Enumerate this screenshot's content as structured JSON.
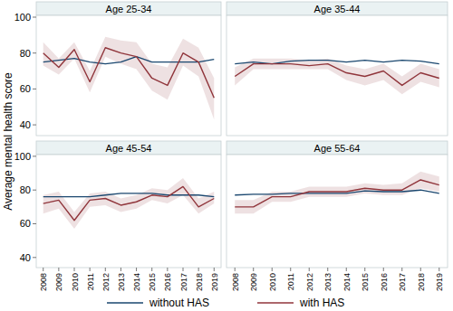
{
  "chart_data": {
    "type": "line",
    "y_label": "Average mental health score",
    "x": [
      2008,
      2009,
      2010,
      2011,
      2012,
      2013,
      2014,
      2015,
      2016,
      2017,
      2018,
      2019
    ],
    "xlim": [
      2007.55,
      2019.45
    ],
    "xticks": [
      2008,
      2009,
      2010,
      2011,
      2012,
      2013,
      2014,
      2015,
      2016,
      2017,
      2018,
      2019
    ],
    "ylim": [
      34,
      101
    ],
    "yticks": [
      40,
      60,
      80,
      100
    ],
    "grid": false,
    "legend": "bottom",
    "series": [
      {
        "name": "without HAS",
        "color": "#1a476f"
      },
      {
        "name": "with HAS",
        "color": "#90353b"
      }
    ],
    "panels": [
      {
        "title": "Age 25-34",
        "series": [
          {
            "values": [
              75,
              76,
              77,
              75,
              74,
              75,
              78,
              75,
              75,
              75,
              75,
              76.5
            ]
          },
          {
            "values": [
              80,
              72,
              82,
              64,
              83,
              80,
              78,
              66,
              62,
              80,
              75,
              55
            ],
            "lower": [
              73,
              68,
              77,
              58,
              78,
              74,
              71,
              59,
              54,
              73,
              67,
              43
            ],
            "upper": [
              86,
              77,
              86,
              70,
              89,
              87,
              86,
              74,
              72,
              88,
              83,
              66
            ]
          }
        ]
      },
      {
        "title": "Age 35-44",
        "series": [
          {
            "values": [
              74,
              75,
              74,
              75.5,
              76,
              76,
              75,
              76,
              75,
              76,
              75.5,
              74
            ]
          },
          {
            "values": [
              67,
              74,
              74,
              74,
              73,
              74,
              69,
              67,
              70,
              62,
              69,
              66
            ],
            "lower": [
              62,
              71,
              71,
              71,
              71,
              71,
              65,
              62,
              65,
              57,
              64,
              61
            ],
            "upper": [
              72,
              77,
              77,
              77,
              76,
              77,
              73,
              71,
              74,
              67,
              74,
              71
            ]
          }
        ]
      },
      {
        "title": "Age 45-54",
        "series": [
          {
            "values": [
              76,
              76,
              76,
              76,
              77,
              78,
              78,
              78,
              77,
              77,
              77,
              76
            ]
          },
          {
            "values": [
              72,
              74,
              62,
              74,
              75,
              71,
              73,
              77,
              76,
              82,
              70,
              75
            ],
            "lower": [
              66,
              69,
              57,
              70,
              71,
              67,
              69,
              74,
              72,
              77,
              66,
              72
            ],
            "upper": [
              77,
              79,
              67,
              78,
              79,
              75,
              77,
              81,
              80,
              87,
              75,
              79
            ]
          }
        ]
      },
      {
        "title": "Age 55-64",
        "series": [
          {
            "values": [
              77,
              77.5,
              77.5,
              78,
              78,
              78,
              78,
              79.5,
              79,
              79,
              80,
              78
            ]
          },
          {
            "values": [
              70,
              70,
              76,
              76,
              79,
              79,
              79,
              81,
              80,
              80,
              86,
              83
            ],
            "lower": [
              66,
              66,
              73,
              73,
              76,
              76,
              76,
              78,
              77,
              77,
              81,
              79
            ],
            "upper": [
              74,
              74,
              79,
              79,
              82,
              82,
              82,
              84,
              83,
              84,
              91,
              88
            ]
          }
        ]
      }
    ]
  }
}
